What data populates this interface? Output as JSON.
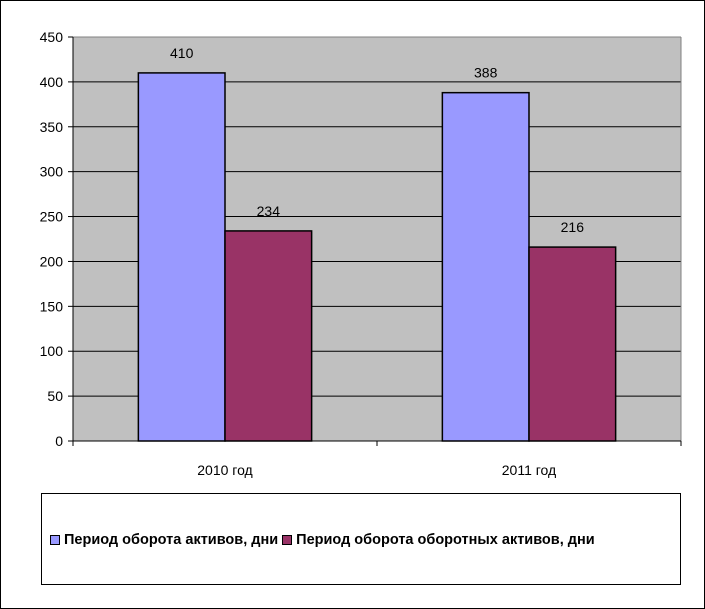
{
  "chart_data": {
    "type": "bar",
    "categories": [
      "2010 год",
      "2011 год"
    ],
    "series": [
      {
        "name": "Период оборота активов, дни",
        "values": [
          410,
          388
        ],
        "color": "#9999FF"
      },
      {
        "name": "Период оборота оборотных активов, дни",
        "values": [
          234,
          216
        ],
        "color": "#993366"
      }
    ],
    "ylim": [
      0,
      450
    ],
    "yticks": [
      0,
      50,
      100,
      150,
      200,
      250,
      300,
      350,
      400,
      450
    ],
    "grid": true,
    "legend_position": "bottom",
    "plot_background": "#C0C0C0",
    "title": "",
    "xlabel": "",
    "ylabel": ""
  }
}
